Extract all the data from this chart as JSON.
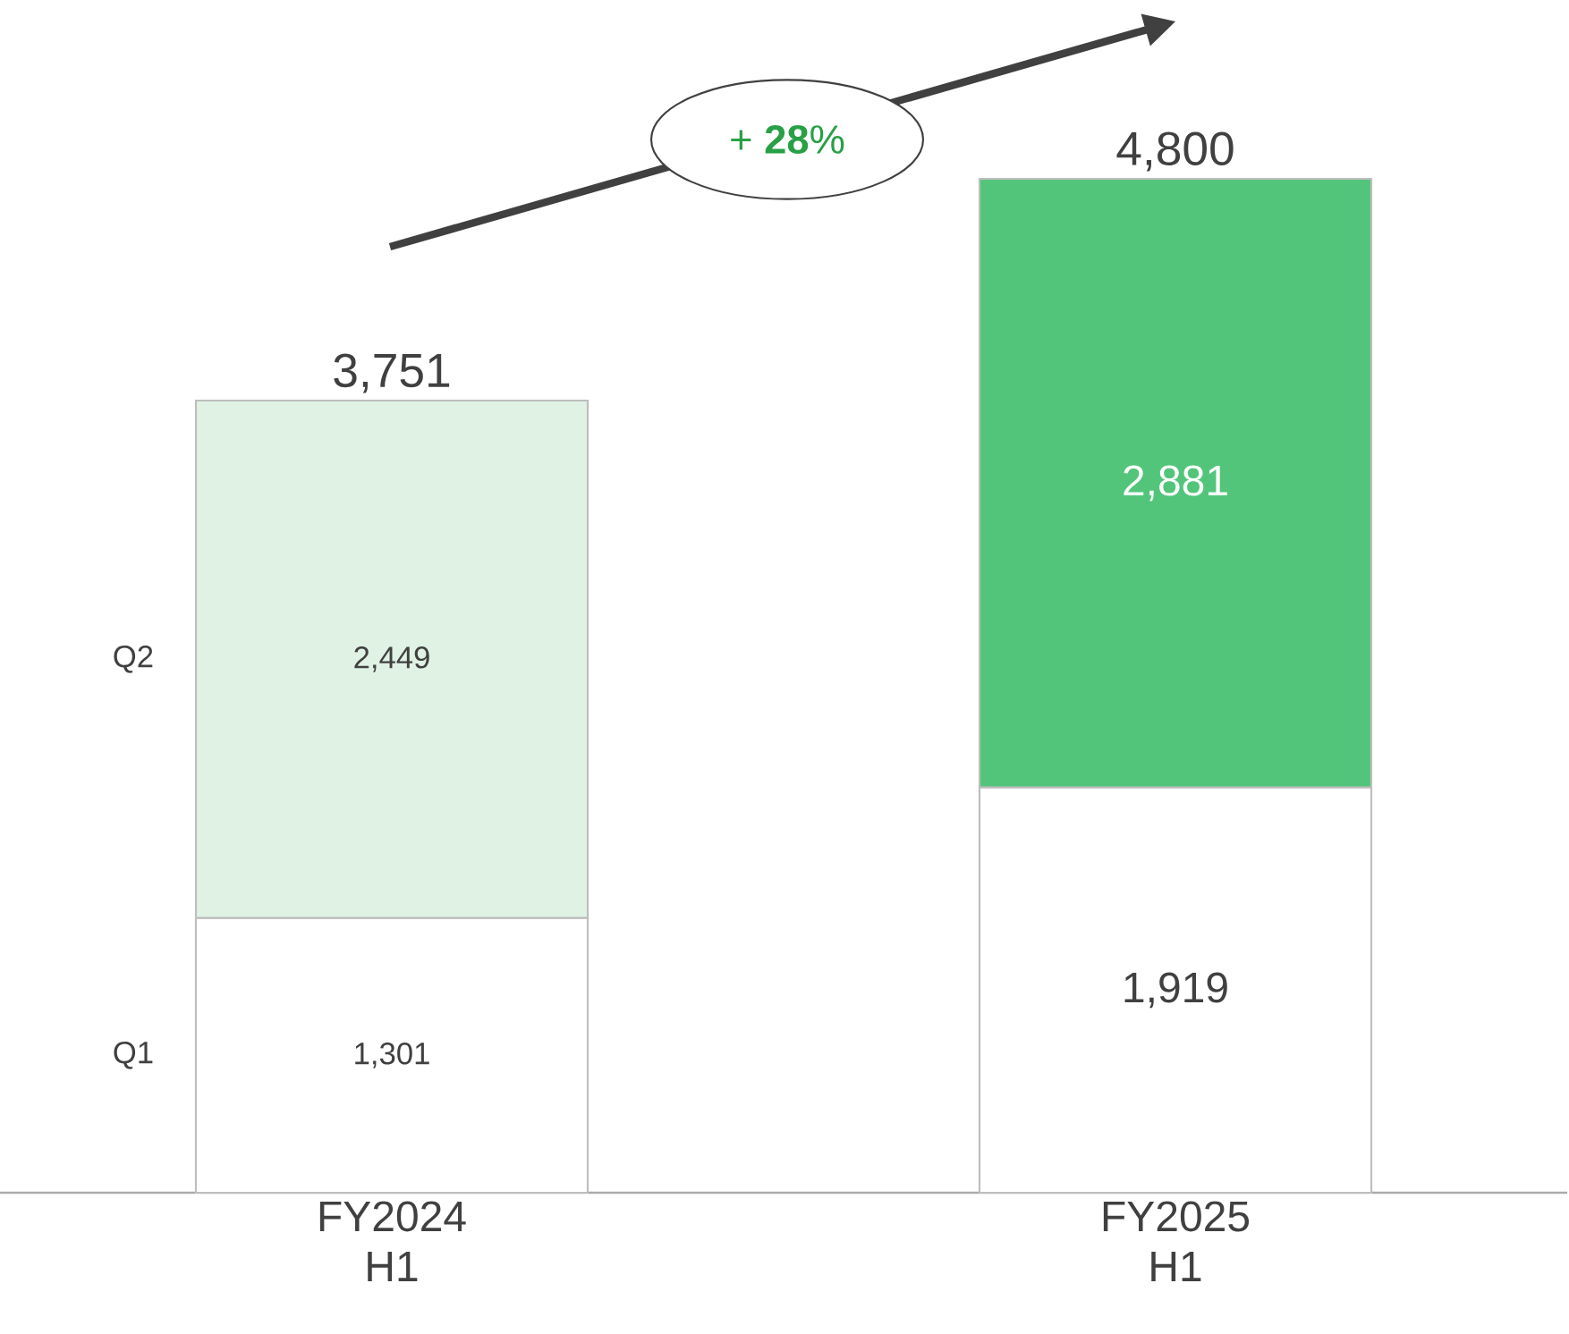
{
  "chart_data": {
    "type": "bar",
    "stacked": true,
    "categories": [
      "FY2024 H1",
      "FY2025 H1"
    ],
    "series": [
      {
        "name": "Q1",
        "colors": [
          "#ffffff",
          "#ffffff"
        ],
        "values": [
          1301,
          1919
        ],
        "value_labels": [
          "1,301",
          "1,919"
        ]
      },
      {
        "name": "Q2",
        "colors": [
          "#dff2e4",
          "#52c57a"
        ],
        "values": [
          2449,
          2881
        ],
        "value_labels": [
          "2,449",
          "2,881"
        ]
      }
    ],
    "totals": [
      "3,751",
      "4,800"
    ],
    "annotations": [
      "+ **28**%"
    ],
    "legend": false,
    "grid": false
  }
}
